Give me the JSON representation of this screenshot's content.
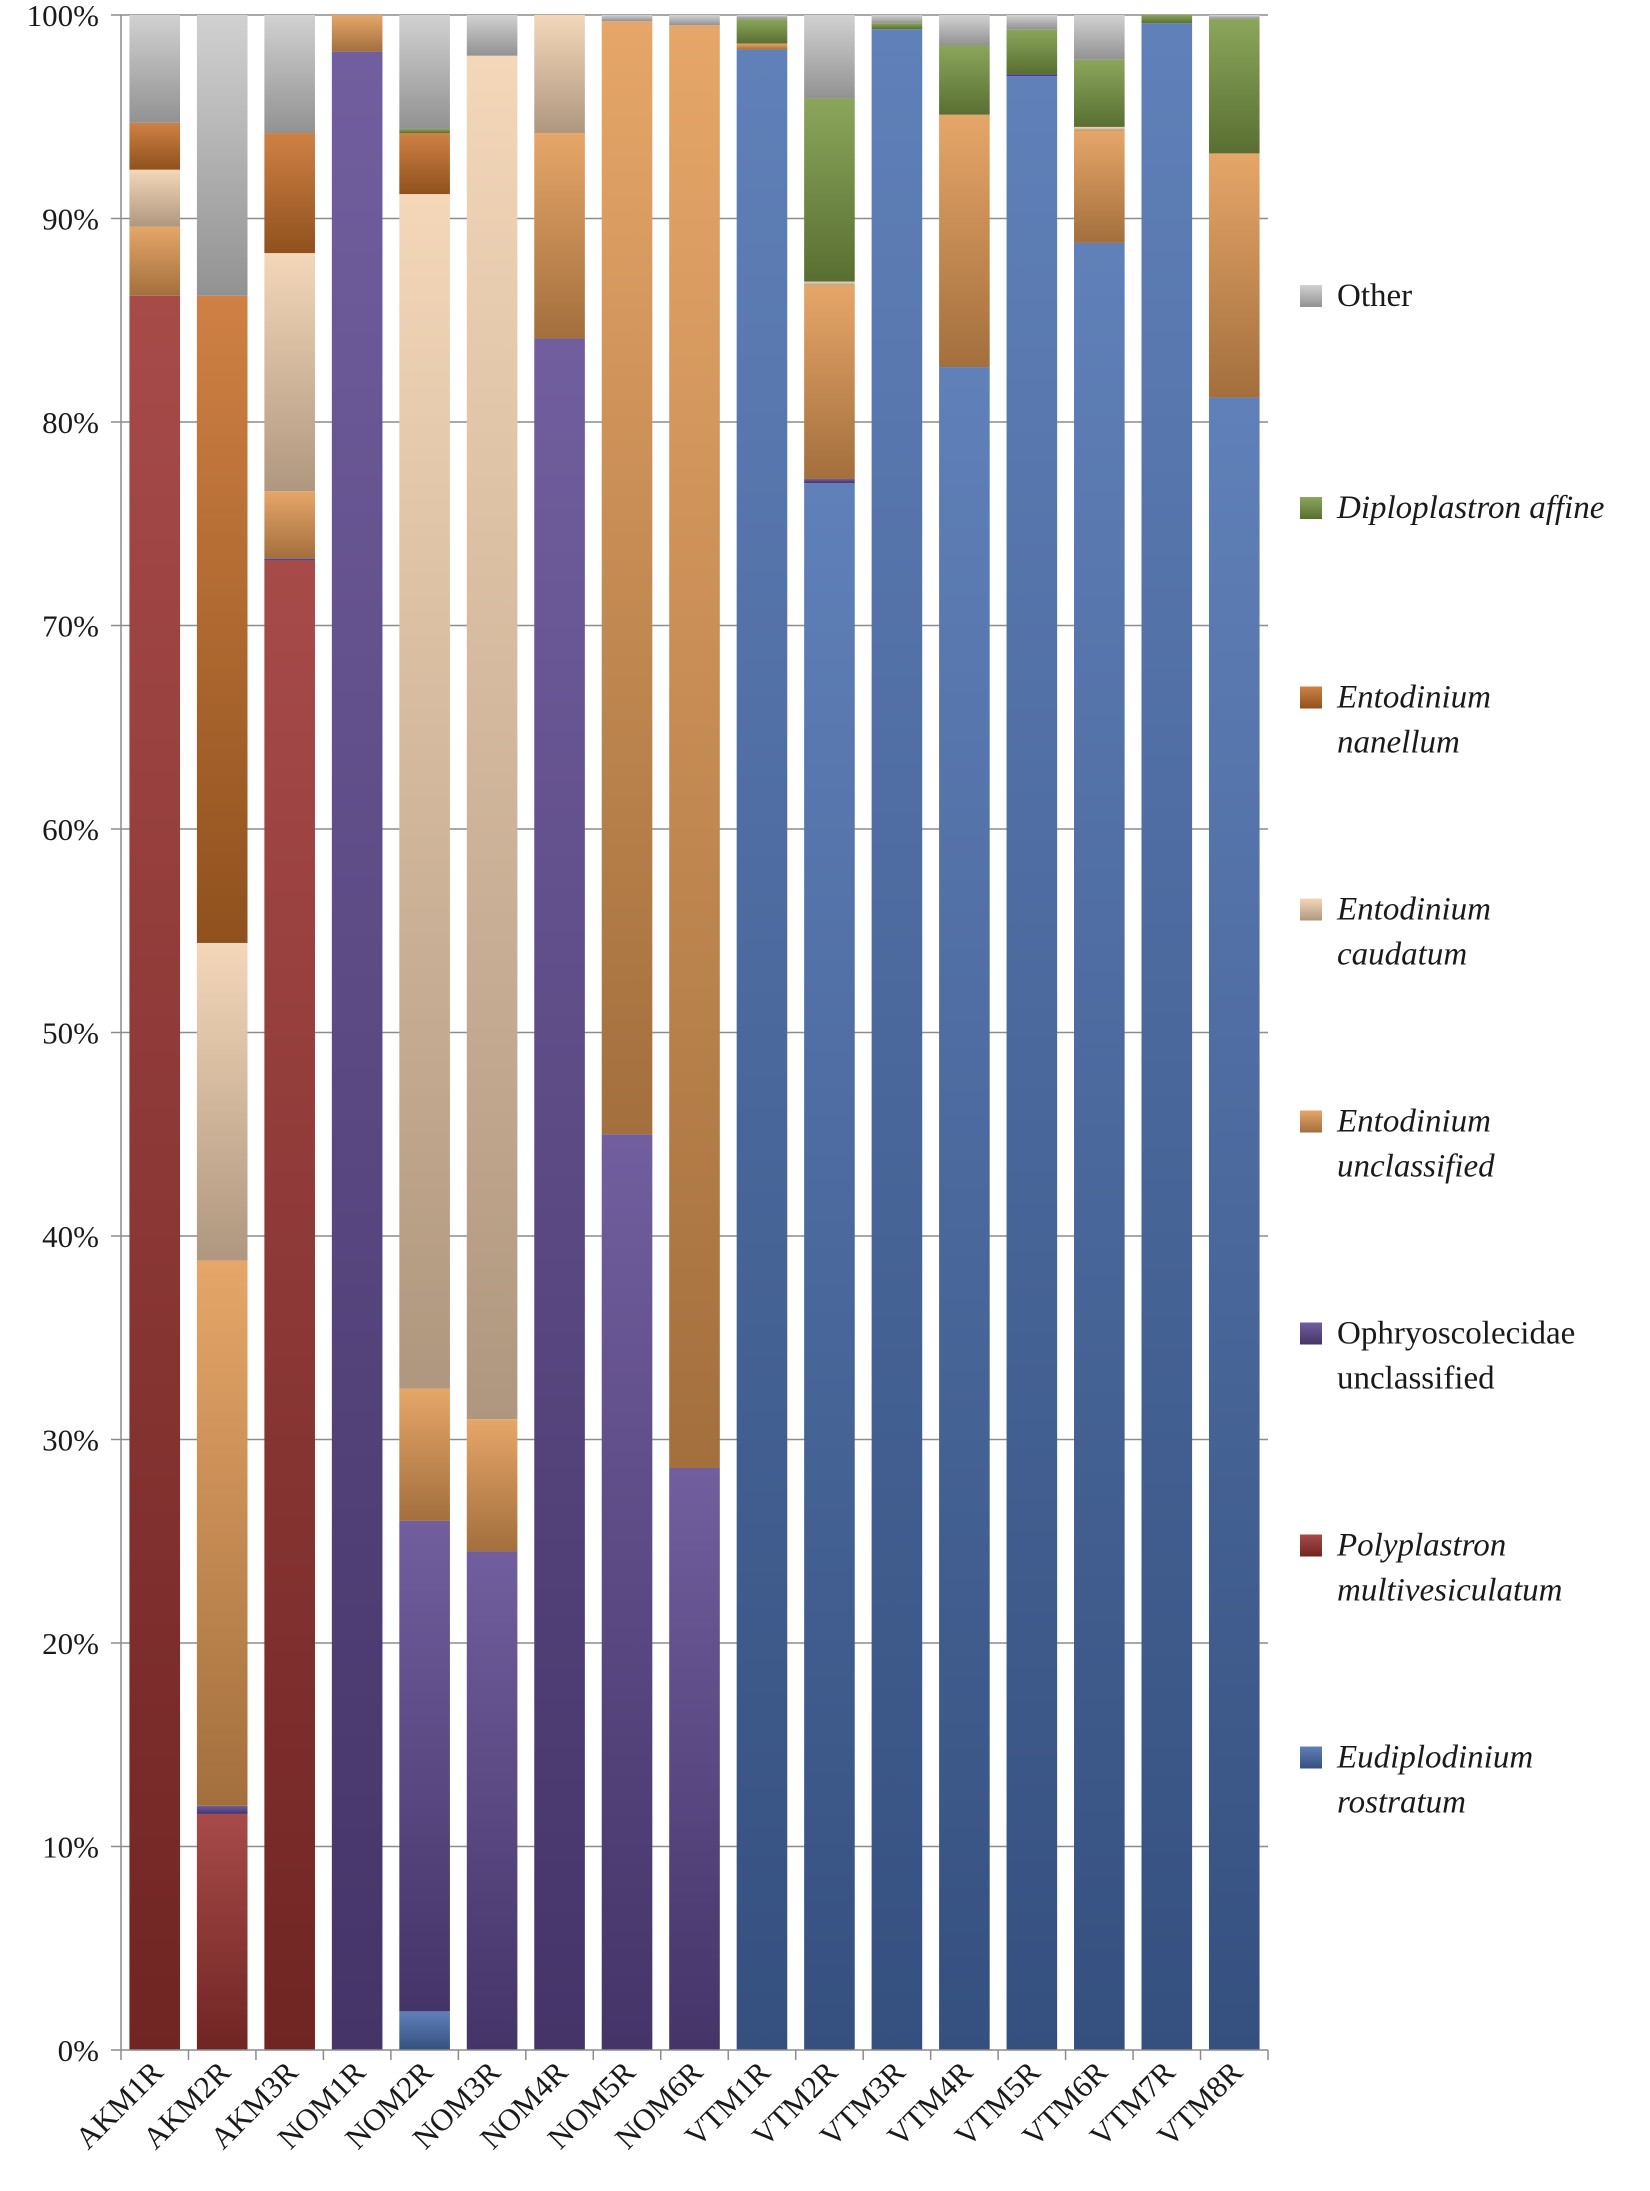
{
  "chart_data": {
    "type": "bar",
    "stacked": true,
    "title": "",
    "xlabel": "",
    "ylabel": "",
    "ylim": [
      0,
      100
    ],
    "yticks": [
      "0%",
      "10%",
      "20%",
      "30%",
      "40%",
      "50%",
      "60%",
      "70%",
      "80%",
      "90%",
      "100%"
    ],
    "grid": true,
    "legend_position": "right",
    "categories": [
      "AKM1R",
      "AKM2R",
      "AKM3R",
      "NOM1R",
      "NOM2R",
      "NOM3R",
      "NOM4R",
      "NOM5R",
      "NOM6R",
      "VTM1R",
      "VTM2R",
      "VTM3R",
      "VTM4R",
      "VTM5R",
      "VTM6R",
      "VTM7R",
      "VTM8R"
    ],
    "series": [
      {
        "name": "Eudiplodinium rostratum",
        "lines": [
          "Eudiplodinium",
          "rostratum"
        ],
        "italic": true,
        "color": "#4a6fb0",
        "values": [
          0,
          0,
          0,
          0,
          1.9,
          0,
          0,
          0,
          0,
          98.3,
          77.0,
          99.3,
          82.7,
          97.0,
          88.8,
          99.6,
          81.2
        ]
      },
      {
        "name": "Polyplastron multivesiculatum",
        "lines": [
          "Polyplastron",
          "multivesiculatum"
        ],
        "italic": true,
        "color": "#9b3330",
        "values": [
          86.2,
          11.6,
          73.2,
          0,
          0,
          0,
          0,
          0,
          0,
          0,
          0,
          0,
          0,
          0,
          0,
          0,
          0
        ]
      },
      {
        "name": "Ophryoscolecidae unclassified",
        "lines": [
          "Ophryoscolecidae",
          "unclassified"
        ],
        "italic": false,
        "color": "#5e4891",
        "values": [
          0,
          0.4,
          0.1,
          98.2,
          24.1,
          24.5,
          84.1,
          45.0,
          28.6,
          0,
          0.2,
          0,
          0,
          0.1,
          0,
          0,
          0
        ]
      },
      {
        "name": "Entodinium unclassified",
        "lines": [
          "Entodinium",
          "unclassified"
        ],
        "italic": true,
        "color": "#e39a55",
        "values": [
          3.4,
          26.8,
          3.3,
          1.8,
          6.5,
          6.5,
          10.1,
          54.7,
          70.9,
          0.3,
          9.5,
          0,
          12.4,
          0,
          5.5,
          0,
          12.0
        ]
      },
      {
        "name": "Entodinium caudatum",
        "lines": [
          "Entodinium",
          "caudatum"
        ],
        "italic": true,
        "color": "#f3d2b0",
        "values": [
          2.8,
          15.6,
          11.7,
          0,
          58.7,
          67.0,
          5.8,
          0,
          0,
          0,
          0.2,
          0,
          0,
          0,
          0.2,
          0,
          0
        ]
      },
      {
        "name": "Entodinium nanellum",
        "lines": [
          "Entodinium",
          "nanellum"
        ],
        "italic": true,
        "color": "#c8702a",
        "values": [
          2.3,
          31.8,
          5.9,
          0,
          3.0,
          0,
          0,
          0,
          0,
          0,
          0,
          0,
          0,
          0,
          0,
          0,
          0
        ]
      },
      {
        "name": "Diploplastron affine",
        "lines": [
          "Diploplastron affine"
        ],
        "italic": true,
        "color": "#7b9a45",
        "values": [
          0,
          0,
          0,
          0,
          0.2,
          0,
          0,
          0,
          0,
          1.2,
          9.0,
          0.3,
          3.4,
          2.2,
          3.3,
          0.4,
          6.6
        ]
      },
      {
        "name": "Other",
        "lines": [
          "Other"
        ],
        "italic": false,
        "color": "#cbcbcb",
        "values": [
          5.3,
          13.8,
          5.8,
          0,
          5.6,
          2.0,
          0,
          0.3,
          0.5,
          0.2,
          4.1,
          0.4,
          1.5,
          0.7,
          2.2,
          0,
          0.2
        ]
      }
    ],
    "legend_order": [
      "Other",
      "Diploplastron affine",
      "Entodinium nanellum",
      "Entodinium caudatum",
      "Entodinium unclassified",
      "Ophryoscolecidae unclassified",
      "Polyplastron multivesiculatum",
      "Eudiplodinium rostratum"
    ]
  }
}
